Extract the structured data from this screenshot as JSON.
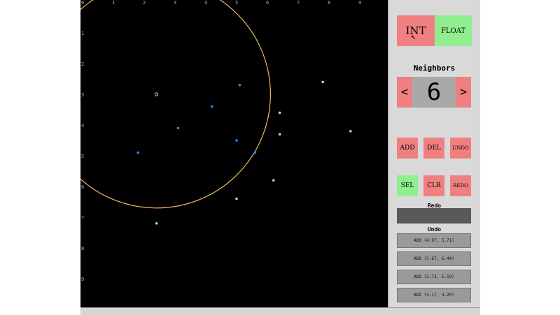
{
  "canvas": {
    "x_ticks": [
      "0",
      "1",
      "2",
      "3",
      "4",
      "5",
      "6",
      "7",
      "8",
      "9"
    ],
    "y_ticks": [
      "1",
      "2",
      "3",
      "4",
      "5",
      "6",
      "7",
      "8",
      "9"
    ],
    "blue_points": [
      [
        5.1,
        2.7
      ],
      [
        4.2,
        3.4
      ],
      [
        3.1,
        4.1
      ],
      [
        5.0,
        4.5
      ],
      [
        1.8,
        4.9
      ],
      [
        5.6,
        4.9
      ]
    ],
    "green_points": [
      [
        7.8,
        2.6
      ],
      [
        6.4,
        3.6
      ],
      [
        6.4,
        4.3
      ],
      [
        8.7,
        4.2
      ],
      [
        6.2,
        5.8
      ],
      [
        5.0,
        6.4
      ],
      [
        2.4,
        7.2
      ]
    ],
    "selected_point": [
      2.4,
      3.0
    ],
    "circle_radius": 3.7,
    "colors": {
      "blue": "#1e90ff",
      "green": "#90ee90",
      "circle": "#f0c060",
      "selected": "#ffffff"
    }
  },
  "panel": {
    "mode_int": "INT",
    "mode_float": "FLOAT",
    "neighbors_title": "Neighbors",
    "neighbors_prev": "<",
    "neighbors_value": "6",
    "neighbors_next": ">",
    "add": "ADD",
    "del": "DEL",
    "undo": "UNDO",
    "sel": "SEL",
    "clr": "CLR",
    "redo": "REDO",
    "redo_title": "Redo",
    "undo_title": "Undo",
    "undo_items": [
      "ADD (4.97, 5.71)",
      "ADD (3.67, 6.44)",
      "ADD (2.73, 5.19)",
      "ADD (4.17, 3.20)"
    ]
  }
}
